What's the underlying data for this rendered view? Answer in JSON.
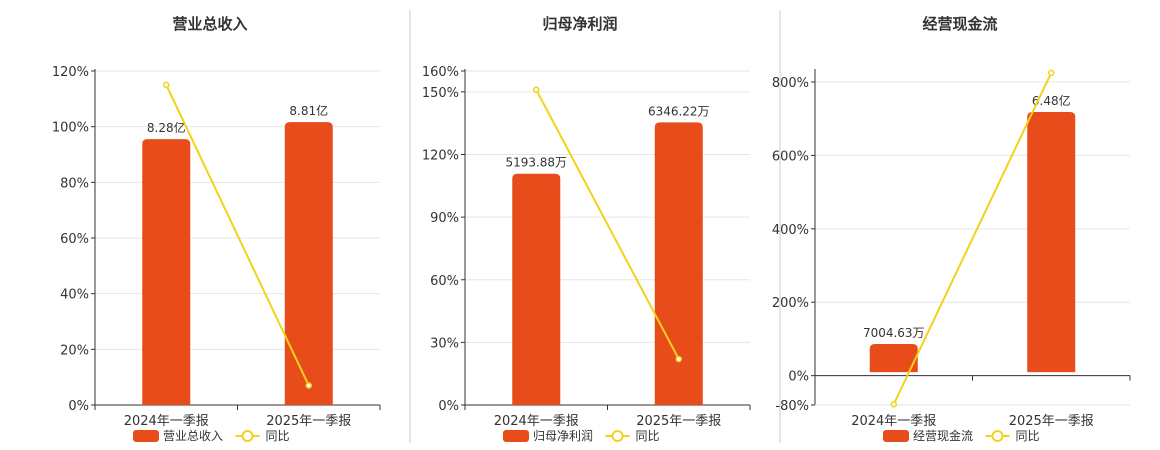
{
  "colors": {
    "bar": "#E84C1B",
    "line": "#F2D21B",
    "grid": "#e6e6e6",
    "axis": "#333333",
    "divider": "#cccccc"
  },
  "chart_data": [
    {
      "type": "bar",
      "title": "营业总收入",
      "categories": [
        "2024年一季报",
        "2025年一季报"
      ],
      "bar_series": {
        "name": "营业总收入",
        "values": [
          8.28,
          8.81
        ],
        "labels": [
          "8.28亿",
          "8.81亿"
        ]
      },
      "line_series": {
        "name": "同比",
        "values": [
          115,
          7
        ]
      },
      "y_left": {
        "ticks": [
          0,
          20,
          40,
          60,
          80,
          100,
          120
        ],
        "tick_labels": [
          "0%",
          "20%",
          "40%",
          "60%",
          "80%",
          "100%",
          "120%"
        ],
        "range": [
          0,
          120
        ]
      },
      "bar_range": [
        0,
        10.4
      ],
      "legend": "bottom"
    },
    {
      "type": "bar",
      "title": "归母净利润",
      "categories": [
        "2024年一季报",
        "2025年一季报"
      ],
      "bar_series": {
        "name": "归母净利润",
        "values": [
          5193.88,
          6346.22
        ],
        "labels": [
          "5193.88万",
          "6346.22万"
        ]
      },
      "line_series": {
        "name": "同比",
        "values": [
          151,
          22
        ]
      },
      "y_left": {
        "ticks": [
          0,
          30,
          60,
          90,
          120,
          150,
          160
        ],
        "tick_labels": [
          "0%",
          "30%",
          "60%",
          "90%",
          "120%",
          "150%",
          "160%"
        ],
        "range": [
          0,
          160
        ]
      },
      "bar_range": [
        0,
        7500
      ],
      "legend": "bottom"
    },
    {
      "type": "bar",
      "title": "经营现金流",
      "categories": [
        "2024年一季报",
        "2025年一季报"
      ],
      "bar_series": {
        "name": "经营现金流",
        "values": [
          7004.63,
          64800
        ],
        "labels": [
          "7004.63万",
          "6.48亿"
        ]
      },
      "line_series": {
        "name": "同比",
        "values": [
          -78,
          825
        ]
      },
      "y_left": {
        "ticks": [
          -80,
          0,
          200,
          400,
          600,
          800
        ],
        "tick_labels": [
          "-80%",
          "0%",
          "200%",
          "400%",
          "600%",
          "800%"
        ],
        "range": [
          -80,
          830
        ]
      },
      "bar_range": [
        -8200,
        75000
      ],
      "legend": "bottom"
    }
  ]
}
